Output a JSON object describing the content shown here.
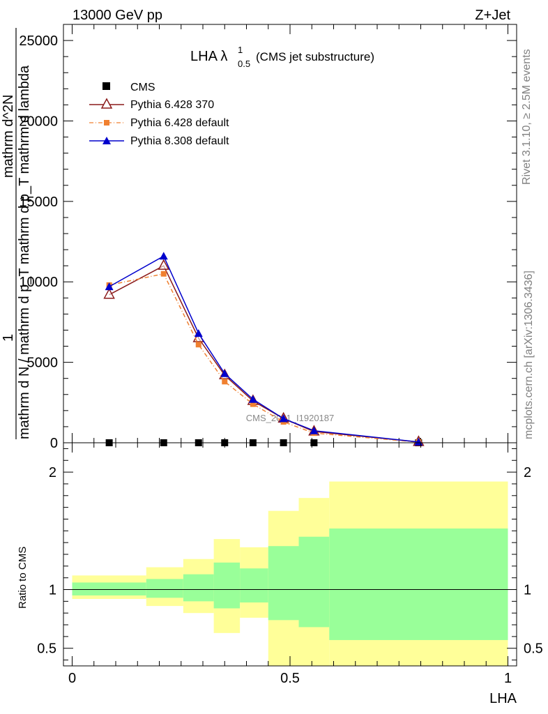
{
  "header": {
    "energy_label": "13000 GeV pp",
    "process_label": "Z+Jet"
  },
  "side_labels": {
    "rivet": "Rivet 3.1.10, ≥ 2.5M events",
    "site": "mcplots.cern.ch [arXiv:1306.3436]"
  },
  "chart_data": [
    {
      "type": "line",
      "panel": "main",
      "title": "LHA λ",
      "title_superscript": "1",
      "title_subscript": "0.5",
      "title_suffix": "(CMS jet substructure)",
      "watermark": "CMS_2021_I1920187",
      "ylabel_numerator": "1",
      "ylabel_denominator": "mathrm d N / mathrm d p_T mathrm d p_T mathrm d lambda",
      "ylabel_overlay": "mathrm d^2N",
      "ylim": [
        0,
        26000
      ],
      "xlim": [
        -0.02,
        1.02
      ],
      "y_ticks": [
        0,
        5000,
        10000,
        15000,
        20000,
        25000
      ],
      "y_tick_labels": [
        "0",
        "5000",
        "10000",
        "15000",
        "20000",
        "25000"
      ],
      "legend_position": "top-left",
      "series": [
        {
          "name": "CMS",
          "marker": "filled-square",
          "color": "#000000",
          "x": [
            0.085,
            0.21,
            0.29,
            0.35,
            0.415,
            0.485,
            0.555,
            0.795
          ],
          "y": [
            0,
            0,
            0,
            0,
            0,
            0,
            0,
            0
          ]
        },
        {
          "name": "Pythia 6.428 370",
          "marker": "open-triangle",
          "color": "#8b1a1a",
          "x": [
            0.085,
            0.21,
            0.29,
            0.35,
            0.415,
            0.485,
            0.555,
            0.795
          ],
          "y": [
            9200,
            11000,
            6500,
            4200,
            2600,
            1500,
            700,
            50
          ]
        },
        {
          "name": "Pythia 6.428 default",
          "marker": "filled-square-small",
          "line": "dash-dot",
          "color": "#f08030",
          "x": [
            0.085,
            0.21,
            0.29,
            0.35,
            0.415,
            0.485,
            0.555,
            0.795
          ],
          "y": [
            9800,
            10500,
            6100,
            3800,
            2400,
            1300,
            600,
            40
          ]
        },
        {
          "name": "Pythia 8.308 default",
          "marker": "filled-triangle",
          "color": "#0000cc",
          "x": [
            0.085,
            0.21,
            0.29,
            0.35,
            0.415,
            0.485,
            0.555,
            0.795
          ],
          "y": [
            9700,
            11600,
            6800,
            4300,
            2700,
            1500,
            750,
            50
          ]
        }
      ]
    },
    {
      "type": "area",
      "panel": "ratio",
      "ylabel": "Ratio to CMS",
      "xlabel": "LHA",
      "ylim": [
        0.35,
        2.25
      ],
      "xlim": [
        -0.02,
        1.02
      ],
      "y_tick_labels": [
        "0.5",
        "1",
        "2"
      ],
      "y_ticks": [
        0.5,
        1,
        2
      ],
      "x_ticks": [
        0,
        0.5,
        1
      ],
      "x_tick_labels": [
        "0",
        "0.5",
        "1"
      ],
      "bins": [
        {
          "lo": 0.0,
          "hi": 0.17,
          "green": [
            0.95,
            1.06
          ],
          "yellow": [
            0.92,
            1.12
          ]
        },
        {
          "lo": 0.17,
          "hi": 0.255,
          "green": [
            0.93,
            1.09
          ],
          "yellow": [
            0.86,
            1.19
          ]
        },
        {
          "lo": 0.255,
          "hi": 0.325,
          "green": [
            0.9,
            1.13
          ],
          "yellow": [
            0.8,
            1.26
          ]
        },
        {
          "lo": 0.325,
          "hi": 0.385,
          "green": [
            0.84,
            1.23
          ],
          "yellow": [
            0.63,
            1.43
          ]
        },
        {
          "lo": 0.385,
          "hi": 0.45,
          "green": [
            0.89,
            1.18
          ],
          "yellow": [
            0.76,
            1.36
          ]
        },
        {
          "lo": 0.45,
          "hi": 0.52,
          "green": [
            0.74,
            1.37
          ],
          "yellow": [
            0.35,
            1.67
          ]
        },
        {
          "lo": 0.52,
          "hi": 0.59,
          "green": [
            0.68,
            1.45
          ],
          "yellow": [
            0.35,
            1.78
          ]
        },
        {
          "lo": 0.59,
          "hi": 1.0,
          "green": [
            0.57,
            1.52
          ],
          "yellow": [
            0.35,
            1.92
          ]
        }
      ],
      "reference_line": 1
    }
  ],
  "colors": {
    "band_green": "#99ff99",
    "band_yellow": "#ffff99"
  }
}
